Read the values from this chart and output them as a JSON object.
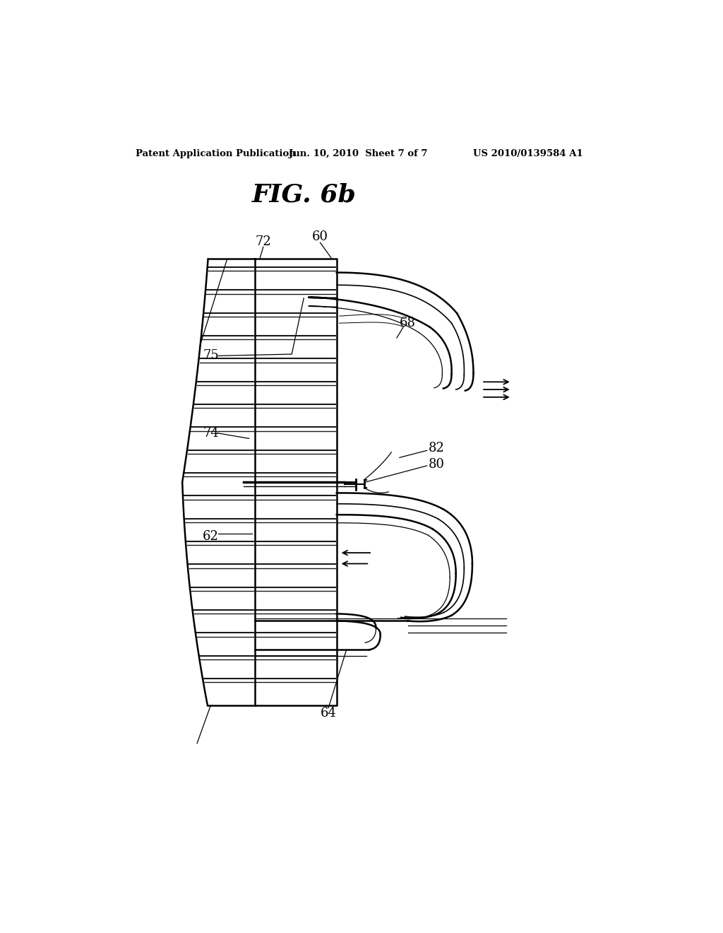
{
  "bg_color": "#ffffff",
  "line_color": "#000000",
  "title": "FIG. 6b",
  "header_left": "Patent Application Publication",
  "header_center": "Jun. 10, 2010  Sheet 7 of 7",
  "header_right": "US 2010/0139584 A1",
  "label_fontsize": 13,
  "header_fontsize": 9.5,
  "title_fontsize": 26
}
